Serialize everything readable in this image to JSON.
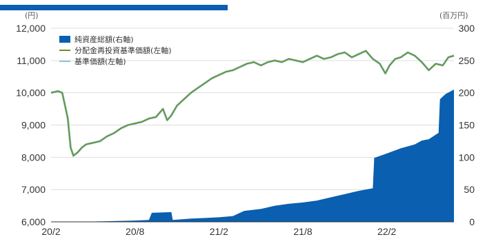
{
  "colors": {
    "nav": "#0a5fb0",
    "series": "#6b8e1e",
    "base": "#8fc7d6",
    "axis": "#333333",
    "grid": "#dddddd"
  },
  "chart_data": {
    "type": "area",
    "left_unit": "(円)",
    "right_unit": "(百万円)",
    "y_left": {
      "min": 6000,
      "max": 12000,
      "ticks": [
        "6,000",
        "7,000",
        "8,000",
        "9,000",
        "10,000",
        "11,000",
        "12,000"
      ]
    },
    "y_right": {
      "min": 0,
      "max": 300,
      "ticks": [
        "0",
        "50",
        "100",
        "150",
        "200",
        "250",
        "300"
      ]
    },
    "x_ticks": [
      "20/2",
      "20/8",
      "21/2",
      "21/8",
      "22/2"
    ],
    "x_tick_months": [
      0,
      6,
      12,
      18,
      24
    ],
    "x_end_month": 28.8,
    "legend": [
      "純資産総額(右軸)",
      "分配金再投資基準価額(左軸)",
      "基準価額(左軸)"
    ],
    "series": [
      {
        "name": "分配金再投資基準価額(左軸)",
        "axis": "left",
        "points": [
          [
            0,
            10000
          ],
          [
            0.5,
            10050
          ],
          [
            0.8,
            10000
          ],
          [
            1.0,
            9600
          ],
          [
            1.2,
            9200
          ],
          [
            1.4,
            8300
          ],
          [
            1.6,
            8050
          ],
          [
            1.9,
            8150
          ],
          [
            2.2,
            8300
          ],
          [
            2.5,
            8400
          ],
          [
            3,
            8450
          ],
          [
            3.5,
            8500
          ],
          [
            4,
            8650
          ],
          [
            4.5,
            8750
          ],
          [
            5,
            8900
          ],
          [
            5.5,
            9000
          ],
          [
            6,
            9050
          ],
          [
            6.5,
            9100
          ],
          [
            7,
            9200
          ],
          [
            7.5,
            9250
          ],
          [
            8,
            9500
          ],
          [
            8.3,
            9150
          ],
          [
            8.6,
            9300
          ],
          [
            9,
            9600
          ],
          [
            9.5,
            9800
          ],
          [
            10,
            10000
          ],
          [
            10.5,
            10150
          ],
          [
            11,
            10300
          ],
          [
            11.5,
            10450
          ],
          [
            12,
            10550
          ],
          [
            12.5,
            10650
          ],
          [
            13,
            10700
          ],
          [
            13.5,
            10800
          ],
          [
            14,
            10900
          ],
          [
            14.5,
            10950
          ],
          [
            15,
            10850
          ],
          [
            15.5,
            10950
          ],
          [
            16,
            11000
          ],
          [
            16.5,
            10950
          ],
          [
            17,
            11050
          ],
          [
            17.5,
            11000
          ],
          [
            18,
            10950
          ],
          [
            18.5,
            11050
          ],
          [
            19,
            11150
          ],
          [
            19.5,
            11050
          ],
          [
            20,
            11100
          ],
          [
            20.5,
            11200
          ],
          [
            21,
            11250
          ],
          [
            21.5,
            11100
          ],
          [
            22,
            11200
          ],
          [
            22.5,
            11300
          ],
          [
            23,
            11050
          ],
          [
            23.5,
            10900
          ],
          [
            23.9,
            10600
          ],
          [
            24.2,
            10850
          ],
          [
            24.6,
            11050
          ],
          [
            25,
            11100
          ],
          [
            25.5,
            11250
          ],
          [
            26,
            11150
          ],
          [
            26.5,
            10950
          ],
          [
            27,
            10700
          ],
          [
            27.5,
            10900
          ],
          [
            28,
            10850
          ],
          [
            28.4,
            11100
          ],
          [
            28.8,
            11150
          ]
        ]
      },
      {
        "name": "純資産総額(右軸)",
        "axis": "right",
        "points": [
          [
            0,
            0
          ],
          [
            1,
            0
          ],
          [
            2,
            0.3
          ],
          [
            3,
            0.5
          ],
          [
            4,
            1
          ],
          [
            5,
            1.5
          ],
          [
            6,
            2
          ],
          [
            7,
            3
          ],
          [
            7.2,
            14
          ],
          [
            8.6,
            15
          ],
          [
            8.7,
            3
          ],
          [
            10,
            5
          ],
          [
            11,
            6
          ],
          [
            12,
            7
          ],
          [
            13,
            9
          ],
          [
            13.8,
            17
          ],
          [
            15,
            20
          ],
          [
            16,
            25
          ],
          [
            17,
            28
          ],
          [
            18,
            30
          ],
          [
            19,
            33
          ],
          [
            20,
            38
          ],
          [
            21,
            43
          ],
          [
            22,
            48
          ],
          [
            23,
            52
          ],
          [
            23.1,
            99
          ],
          [
            24,
            106
          ],
          [
            25,
            114
          ],
          [
            26,
            120
          ],
          [
            26.5,
            126
          ],
          [
            27,
            128
          ],
          [
            27.7,
            138
          ],
          [
            27.8,
            190
          ],
          [
            28.2,
            198
          ],
          [
            28.8,
            205
          ]
        ]
      }
    ]
  }
}
